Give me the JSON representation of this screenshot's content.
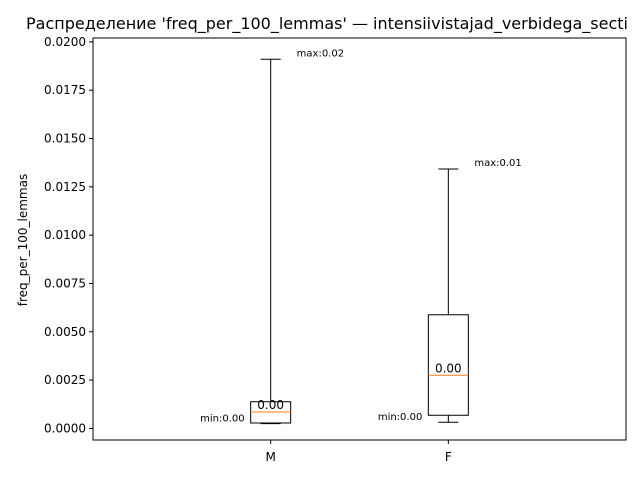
{
  "chart_data": {
    "type": "box",
    "title": "Распределение 'freq_per_100_lemmas' — intensiivistajad_verbidega_secti",
    "xlabel": "",
    "ylabel": "freq_per_100_lemmas",
    "ylim": [
      -0.0006,
      0.0202
    ],
    "yticks": [
      "0.0000",
      "0.0025",
      "0.0050",
      "0.0075",
      "0.0100",
      "0.0125",
      "0.0150",
      "0.0175",
      "0.0200"
    ],
    "grid": false,
    "categories": [
      "M",
      "F"
    ],
    "boxes": [
      {
        "category": "M",
        "whisker_low": 0.00025,
        "q1": 0.00028,
        "median": 0.00085,
        "q3": 0.00138,
        "whisker_high": 0.0191,
        "median_label": "0.00",
        "min_label": "min:0.00",
        "max_label": "max:0.02"
      },
      {
        "category": "F",
        "whisker_low": 0.00032,
        "q1": 0.00068,
        "median": 0.00275,
        "q3": 0.00588,
        "whisker_high": 0.01342,
        "median_label": "0.00",
        "min_label": "min:0.00",
        "max_label": "max:0.01"
      }
    ],
    "colors": {
      "box": "#000000",
      "median": "#ff7f0e",
      "whisker": "#000000"
    }
  }
}
